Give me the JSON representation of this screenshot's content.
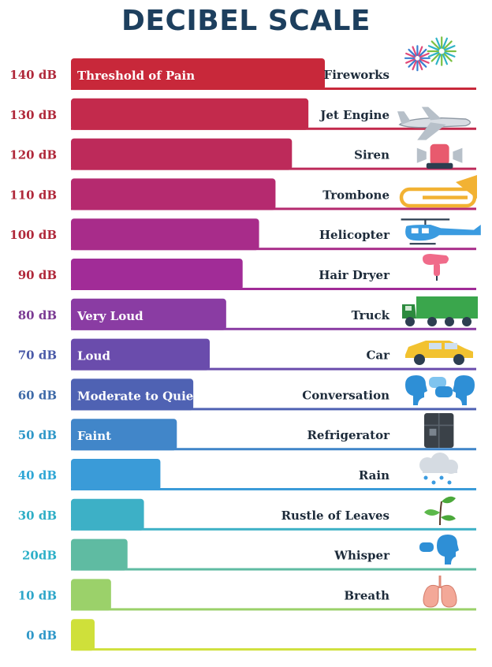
{
  "chart_data": {
    "type": "bar",
    "title": "DECIBEL SCALE",
    "categories": [
      "140 dB",
      "130 dB",
      "120 dB",
      "110 dB",
      "100 dB",
      "90 dB",
      "80 dB",
      "70 dB",
      "60 dB",
      "50 dB",
      "40 dB",
      "30 dB",
      "20dB",
      "10 dB",
      "0 dB"
    ],
    "values": [
      140,
      130,
      120,
      110,
      100,
      90,
      80,
      70,
      60,
      50,
      40,
      30,
      20,
      10,
      0
    ],
    "bar_labels": [
      "Threshold of Pain",
      "",
      "",
      "",
      "",
      "",
      "Very Loud",
      "Loud",
      "Moderate to Quiet",
      "Faint",
      "",
      "",
      "",
      "",
      ""
    ],
    "sources": [
      "Fireworks",
      "Jet Engine",
      "Siren",
      "Trombone",
      "Helicopter",
      "Hair Dryer",
      "Truck",
      "Car",
      "Conversation",
      "Refrigerator",
      "Rain",
      "Rustle of Leaves",
      "Whisper",
      "Breath",
      ""
    ],
    "icons": [
      "fireworks-icon",
      "jet-engine-icon",
      "siren-icon",
      "trombone-icon",
      "helicopter-icon",
      "hair-dryer-icon",
      "truck-icon",
      "car-icon",
      "conversation-icon",
      "refrigerator-icon",
      "rain-icon",
      "leaves-icon",
      "whisper-icon",
      "lungs-icon",
      ""
    ],
    "colors": [
      "#c8283a",
      "#c32a4c",
      "#bd2a5a",
      "#b52a6f",
      "#a82c8a",
      "#a12c97",
      "#8a3ca3",
      "#6a4cac",
      "#4f62b3",
      "#4186c9",
      "#3a9bd8",
      "#3db0c6",
      "#5fbba2",
      "#9bd16a",
      "#cfe03a"
    ],
    "label_colors": [
      "#b0283a",
      "#b0283a",
      "#b0283a",
      "#b0283a",
      "#b0283a",
      "#b0283a",
      "#7a3a93",
      "#4a5aa8",
      "#3e6aa8",
      "#2e97c8",
      "#2ea6d5",
      "#2eaec6",
      "#2eb0c8",
      "#2ea6c9",
      "#2e97c8"
    ],
    "xlim": [
      0,
      140
    ],
    "grid": false,
    "legend": "none"
  }
}
